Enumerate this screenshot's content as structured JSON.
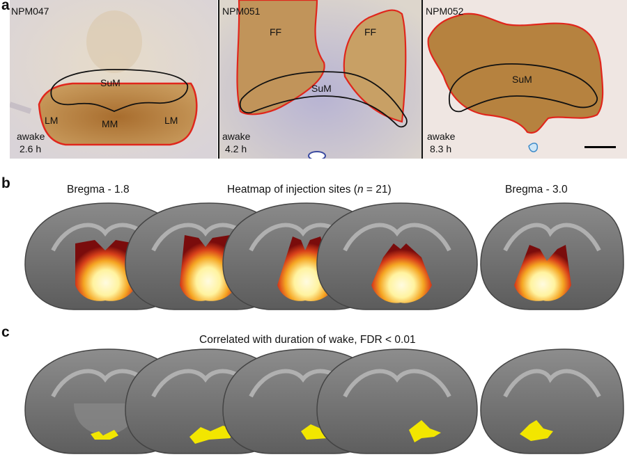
{
  "panel_a": {
    "letter": "a",
    "sections": [
      {
        "id": "NPM047",
        "time_line1": "awake",
        "time_line2": "2.6 h",
        "regions": [
          "SuM",
          "LM",
          "MM",
          "LM"
        ]
      },
      {
        "id": "NPM051",
        "time_line1": "awake",
        "time_line2": "4.2 h",
        "regions": [
          "FF",
          "FF",
          "SuM"
        ]
      },
      {
        "id": "NPM052",
        "time_line1": "awake",
        "time_line2": "8.3 h",
        "regions": [
          "SuM"
        ]
      }
    ]
  },
  "panel_b": {
    "letter": "b",
    "left_label": "Bregma - 1.8",
    "title_pre": "Heatmap of injection sites (",
    "title_n": "n",
    "title_post": " = 21)",
    "right_label": "Bregma - 3.0"
  },
  "panel_c": {
    "letter": "c",
    "title": "Correlated with duration of wake, FDR < 0.01"
  },
  "colors": {
    "stain_brown": "#b07a3c",
    "outline_red": "#e0261c",
    "heat_yellow": "#fff3a0",
    "heat_dark": "#7a0c0c",
    "sig_yellow": "#f2e600",
    "brain_gray": "#7a7a7a"
  }
}
